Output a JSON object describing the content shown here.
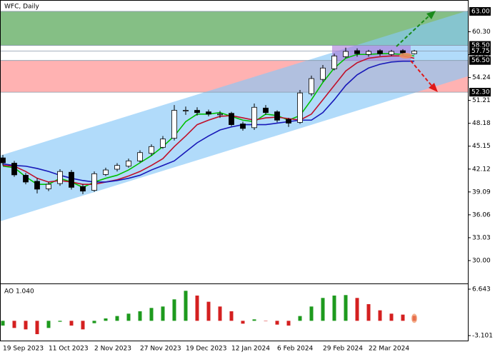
{
  "chart_data": [
    {
      "type": "candlestick",
      "title": "WFC, Daily",
      "categories": [
        "19 Sep 2023",
        null,
        null,
        null,
        "11 Oct 2023",
        null,
        null,
        null,
        "2 Nov 2023",
        null,
        null,
        null,
        "27 Nov 2023",
        null,
        null,
        null,
        "19 Dec 2023",
        null,
        null,
        null,
        "12 Jan 2024",
        null,
        null,
        null,
        "6 Feb 2024",
        null,
        null,
        null,
        "29 Feb 2024",
        null,
        null,
        null,
        "22 Mar 2024",
        null,
        null,
        null,
        null
      ],
      "open": [
        43.6,
        42.9,
        41.3,
        40.5,
        39.5,
        40.2,
        41.7,
        39.8,
        39.3,
        41.4,
        42.1,
        42.5,
        43.2,
        44.2,
        45.0,
        46.2,
        49.8,
        49.9,
        49.7,
        49.3,
        49.5,
        48.1,
        47.6,
        50.2,
        49.7,
        48.7,
        48.3,
        52.1,
        54.0,
        55.4,
        57.0,
        57.8,
        57.3,
        57.8,
        57.3,
        57.8,
        57.4
      ],
      "high": [
        44.0,
        43.2,
        41.6,
        40.9,
        40.4,
        42.1,
        42.0,
        40.1,
        41.8,
        42.3,
        42.9,
        43.5,
        44.6,
        45.4,
        46.5,
        50.6,
        50.4,
        50.3,
        50.0,
        49.8,
        49.7,
        48.4,
        50.8,
        50.6,
        49.9,
        48.9,
        52.6,
        54.5,
        55.9,
        57.4,
        58.2,
        58.1,
        57.9,
        58.0,
        57.9,
        58.0,
        57.9
      ],
      "low": [
        42.6,
        41.1,
        40.1,
        38.9,
        39.2,
        39.9,
        39.4,
        38.8,
        39.1,
        41.2,
        41.8,
        42.3,
        43.0,
        43.9,
        44.8,
        45.9,
        49.3,
        49.2,
        49.1,
        48.9,
        47.8,
        47.2,
        47.3,
        49.3,
        48.3,
        47.7,
        48.1,
        51.8,
        53.7,
        55.2,
        56.8,
        57.0,
        57.0,
        57.1,
        57.1,
        57.2,
        57.3
      ],
      "close": [
        42.95,
        41.35,
        40.4,
        39.46,
        40.1,
        41.8,
        39.7,
        39.2,
        41.5,
        42.0,
        42.6,
        43.2,
        44.3,
        45.1,
        46.1,
        49.9,
        49.9,
        49.6,
        49.4,
        49.4,
        48.0,
        47.5,
        50.3,
        49.6,
        48.6,
        48.2,
        52.2,
        54.1,
        55.5,
        57.1,
        57.7,
        57.4,
        57.7,
        57.4,
        57.7,
        57.5,
        57.75
      ],
      "series": [
        {
          "color": "#00c000",
          "values": [
            42.5,
            42.3,
            41.1,
            40.1,
            40.1,
            40.9,
            40.4,
            39.7,
            40.4,
            40.9,
            41.3,
            42.0,
            42.95,
            43.9,
            45.1,
            46.5,
            48.4,
            49.4,
            49.4,
            49.6,
            49.1,
            48.6,
            48.4,
            49.4,
            49.2,
            48.6,
            49.2,
            51.3,
            53.6,
            55.5,
            56.8,
            57.3,
            57.3,
            57.4,
            57.4,
            57.3,
            57.1
          ]
        },
        {
          "color": "#c0102a",
          "values": [
            42.6,
            42.5,
            41.8,
            40.9,
            40.4,
            40.6,
            40.4,
            40.1,
            40.1,
            40.4,
            40.7,
            41.2,
            41.8,
            42.6,
            43.5,
            45.1,
            46.5,
            48.0,
            48.6,
            49.1,
            49.2,
            48.9,
            48.6,
            48.9,
            49.0,
            48.8,
            48.6,
            49.4,
            51.3,
            53.2,
            55.1,
            56.2,
            56.8,
            57.0,
            57.1,
            57.1,
            56.8
          ]
        },
        {
          "color": "#1818b8",
          "values": [
            42.8,
            42.6,
            42.5,
            42.2,
            41.8,
            41.3,
            40.9,
            40.6,
            40.4,
            40.4,
            40.6,
            40.9,
            41.3,
            42.0,
            42.6,
            43.2,
            44.4,
            45.6,
            46.5,
            47.3,
            47.7,
            48.0,
            48.0,
            48.0,
            48.2,
            48.4,
            48.6,
            48.6,
            49.6,
            51.3,
            53.2,
            54.6,
            55.5,
            56.0,
            56.3,
            56.4,
            56.4
          ]
        }
      ],
      "channel": {
        "upper": [
          43.9,
          63.1
        ],
        "lower": [
          35.2,
          54.4
        ],
        "color": "#87c8f8"
      },
      "zones": [
        {
          "from": 58.5,
          "to": 63,
          "color": "#78b878"
        },
        {
          "from": 52.3,
          "to": 56.5,
          "color": "#ffaaaa"
        }
      ],
      "levels": [
        {
          "value": 63,
          "label": "63.00"
        },
        {
          "value": 58.5,
          "label": "58.50"
        },
        {
          "value": 57.75,
          "label": "57.75"
        },
        {
          "value": 56.5,
          "label": "56.50"
        },
        {
          "value": 52.3,
          "label": "52.30"
        }
      ],
      "ylim": [
        26.97,
        64.32
      ],
      "yticks": [
        {
          "value": 30,
          "label": "30.00"
        },
        33.03,
        36.06,
        39.09,
        42.12,
        45.15,
        48.18,
        51.21,
        54.24,
        57.27,
        {
          "value": 60.3,
          "label": "60.30"
        }
      ]
    },
    {
      "type": "histogram-indicator",
      "title": "AO 1.040",
      "values": [
        -1.0,
        -1.5,
        -1.8,
        -2.8,
        -1.5,
        -0.2,
        -1.0,
        -1.8,
        -0.5,
        0.5,
        1.0,
        1.5,
        2.0,
        2.7,
        3.0,
        4.5,
        6.3,
        5.3,
        4.0,
        3.0,
        2.0,
        -0.6,
        0.3,
        0.0,
        -0.8,
        -1.0,
        1.0,
        3.0,
        4.8,
        5.3,
        5.4,
        4.8,
        3.5,
        2.2,
        1.5,
        1.3,
        1.04
      ],
      "up_color": "#1e9a1e",
      "down_color": "#d42020",
      "ylim": [
        -4.15,
        7.69
      ],
      "yticks": [
        -3.101,
        6.643
      ]
    }
  ]
}
